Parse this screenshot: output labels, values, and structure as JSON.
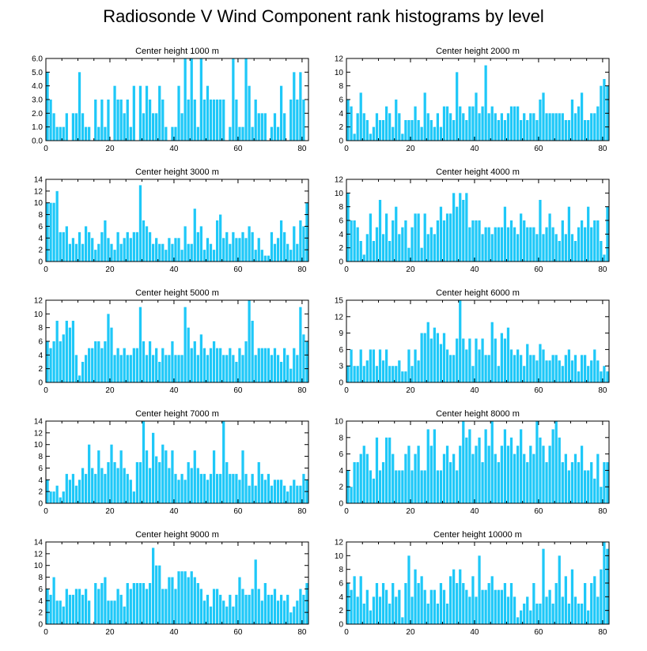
{
  "title": "Radiosonde V Wind Component rank histograms by level",
  "colors": {
    "bar": "#1ec8f8",
    "axis": "#000000",
    "text": "#000000"
  },
  "chart_data": [
    {
      "type": "bar",
      "title": "Center height 1000 m",
      "xlim": [
        0,
        82
      ],
      "ylim": [
        0,
        6
      ],
      "yticks": [
        0,
        1,
        2,
        3,
        4,
        5,
        6
      ],
      "ytick_labels": [
        "0.0",
        "1.0",
        "2.0",
        "3.0",
        "4.0",
        "5.0",
        "6.0"
      ],
      "xticks": [
        0,
        20,
        40,
        60,
        80
      ],
      "xlabel": "",
      "ylabel": "",
      "values": [
        5,
        3,
        2,
        1,
        1,
        1,
        2,
        0,
        2,
        2,
        5,
        2,
        1,
        1,
        0,
        3,
        1,
        3,
        1,
        3,
        0,
        4,
        3,
        3,
        2,
        3,
        1,
        4,
        0,
        4,
        2,
        4,
        3,
        2,
        2,
        4,
        3,
        1,
        0,
        1,
        1,
        4,
        2,
        6,
        3,
        6,
        3,
        1,
        6,
        3,
        4,
        3,
        3,
        3,
        3,
        3,
        0,
        1,
        6,
        3,
        1,
        1,
        6,
        4,
        1,
        3,
        2,
        2,
        2,
        0,
        1,
        2,
        1,
        4,
        2,
        0,
        3,
        5,
        3,
        5,
        3,
        0
      ]
    },
    {
      "type": "bar",
      "title": "Center height 2000 m",
      "xlim": [
        0,
        82
      ],
      "ylim": [
        0,
        12
      ],
      "yticks": [
        0,
        2,
        4,
        6,
        8,
        10,
        12
      ],
      "ytick_labels": [
        "0",
        "2",
        "4",
        "6",
        "8",
        "10",
        "12"
      ],
      "xticks": [
        0,
        20,
        40,
        60,
        80
      ],
      "xlabel": "",
      "ylabel": "",
      "values": [
        6,
        5,
        1,
        4,
        7,
        4,
        3,
        1,
        2,
        4,
        3,
        3,
        5,
        4,
        2,
        6,
        4,
        1,
        3,
        3,
        3,
        5,
        3,
        2,
        7,
        4,
        3,
        2,
        4,
        2,
        5,
        5,
        4,
        3,
        10,
        5,
        4,
        3,
        5,
        5,
        7,
        4,
        5,
        11,
        4,
        5,
        4,
        3,
        4,
        3,
        4,
        5,
        5,
        5,
        3,
        4,
        3,
        4,
        4,
        3,
        6,
        7,
        4,
        4,
        4,
        4,
        4,
        4,
        3,
        3,
        6,
        4,
        5,
        7,
        3,
        3,
        4,
        4,
        5,
        8,
        9,
        8
      ]
    },
    {
      "type": "bar",
      "title": "Center height 3000 m",
      "xlim": [
        0,
        82
      ],
      "ylim": [
        0,
        14
      ],
      "yticks": [
        0,
        2,
        4,
        6,
        8,
        10,
        12,
        14
      ],
      "ytick_labels": [
        "0",
        "2",
        "4",
        "6",
        "8",
        "10",
        "12",
        "14"
      ],
      "xticks": [
        0,
        20,
        40,
        60,
        80
      ],
      "xlabel": "",
      "ylabel": "",
      "values": [
        10,
        10,
        10,
        12,
        5,
        5,
        6,
        3,
        4,
        3,
        5,
        3,
        6,
        5,
        4,
        2,
        3,
        5,
        7,
        4,
        3,
        2,
        5,
        3,
        4,
        5,
        4,
        5,
        5,
        13,
        7,
        6,
        5,
        3,
        4,
        3,
        3,
        2,
        4,
        3,
        4,
        4,
        2,
        6,
        3,
        3,
        9,
        5,
        6,
        2,
        4,
        3,
        2,
        7,
        8,
        4,
        5,
        3,
        5,
        4,
        4,
        5,
        4,
        6,
        5,
        2,
        4,
        2,
        1,
        1,
        5,
        3,
        4,
        7,
        5,
        3,
        2,
        6,
        3,
        7,
        6,
        10
      ]
    },
    {
      "type": "bar",
      "title": "Center height 4000 m",
      "xlim": [
        0,
        82
      ],
      "ylim": [
        0,
        12
      ],
      "yticks": [
        0,
        2,
        4,
        6,
        8,
        10,
        12
      ],
      "ytick_labels": [
        "0",
        "2",
        "4",
        "6",
        "8",
        "10",
        "12"
      ],
      "xticks": [
        0,
        20,
        40,
        60,
        80
      ],
      "xlabel": "",
      "ylabel": "",
      "values": [
        10,
        6,
        6,
        5,
        3,
        1,
        4,
        7,
        3,
        5,
        9,
        4,
        7,
        3,
        6,
        8,
        4,
        5,
        6,
        2,
        5,
        7,
        7,
        2,
        7,
        4,
        5,
        4,
        6,
        8,
        6,
        7,
        7,
        10,
        8,
        10,
        9,
        10,
        5,
        6,
        6,
        6,
        4,
        5,
        5,
        4,
        5,
        5,
        5,
        8,
        5,
        6,
        5,
        4,
        7,
        6,
        5,
        5,
        5,
        4,
        9,
        4,
        5,
        7,
        5,
        4,
        3,
        6,
        4,
        8,
        4,
        3,
        5,
        6,
        5,
        8,
        5,
        6,
        6,
        3,
        1,
        8
      ]
    },
    {
      "type": "bar",
      "title": "Center height 5000 m",
      "xlim": [
        0,
        82
      ],
      "ylim": [
        0,
        12
      ],
      "yticks": [
        0,
        2,
        4,
        6,
        8,
        10,
        12
      ],
      "ytick_labels": [
        "0",
        "2",
        "4",
        "6",
        "8",
        "10",
        "12"
      ],
      "xticks": [
        0,
        20,
        40,
        60,
        80
      ],
      "xlabel": "",
      "ylabel": "",
      "values": [
        6,
        5,
        6,
        9,
        6,
        7,
        9,
        8,
        9,
        4,
        1,
        3,
        4,
        5,
        5,
        6,
        6,
        5,
        6,
        10,
        8,
        4,
        5,
        4,
        5,
        4,
        4,
        5,
        5,
        11,
        6,
        4,
        6,
        4,
        5,
        3,
        5,
        4,
        4,
        6,
        4,
        4,
        4,
        11,
        8,
        5,
        6,
        4,
        7,
        5,
        4,
        5,
        6,
        5,
        5,
        4,
        4,
        5,
        4,
        3,
        5,
        4,
        6,
        12,
        9,
        4,
        5,
        5,
        5,
        5,
        4,
        5,
        4,
        3,
        5,
        4,
        2,
        5,
        4,
        11,
        7,
        6
      ]
    },
    {
      "type": "bar",
      "title": "Center height 6000 m",
      "xlim": [
        0,
        82
      ],
      "ylim": [
        0,
        15
      ],
      "yticks": [
        0,
        3,
        6,
        9,
        12,
        15
      ],
      "ytick_labels": [
        "0",
        "3",
        "6",
        "9",
        "12",
        "15"
      ],
      "xticks": [
        0,
        20,
        40,
        60,
        80
      ],
      "xlabel": "",
      "ylabel": "",
      "values": [
        3,
        6,
        3,
        3,
        6,
        3,
        4,
        6,
        6,
        3,
        6,
        4,
        6,
        3,
        3,
        3,
        4,
        2,
        2,
        6,
        3,
        6,
        4,
        9,
        9,
        11,
        8,
        10,
        9,
        7,
        9,
        6,
        5,
        5,
        8,
        15,
        8,
        6,
        8,
        3,
        8,
        6,
        8,
        5,
        5,
        11,
        8,
        3,
        9,
        8,
        10,
        6,
        5,
        6,
        5,
        3,
        7,
        5,
        5,
        4,
        7,
        6,
        4,
        4,
        5,
        5,
        4,
        3,
        5,
        6,
        4,
        5,
        2,
        5,
        5,
        3,
        4,
        6,
        4,
        2,
        3,
        2
      ]
    },
    {
      "type": "bar",
      "title": "Center height 7000 m",
      "xlim": [
        0,
        82
      ],
      "ylim": [
        0,
        14
      ],
      "yticks": [
        0,
        2,
        4,
        6,
        8,
        10,
        12,
        14
      ],
      "ytick_labels": [
        "0",
        "2",
        "4",
        "6",
        "8",
        "10",
        "12",
        "14"
      ],
      "xticks": [
        0,
        20,
        40,
        60,
        80
      ],
      "xlabel": "",
      "ylabel": "",
      "values": [
        4,
        2,
        2,
        3,
        1,
        2,
        5,
        4,
        5,
        3,
        4,
        6,
        5,
        10,
        6,
        5,
        9,
        6,
        5,
        7,
        10,
        7,
        6,
        9,
        6,
        5,
        4,
        2,
        7,
        7,
        14,
        9,
        6,
        12,
        8,
        7,
        10,
        9,
        6,
        9,
        5,
        4,
        5,
        4,
        7,
        6,
        9,
        6,
        5,
        5,
        4,
        5,
        9,
        5,
        5,
        14,
        7,
        5,
        5,
        5,
        4,
        9,
        5,
        3,
        5,
        3,
        7,
        5,
        4,
        5,
        3,
        4,
        4,
        4,
        3,
        2,
        3,
        4,
        3,
        3,
        5,
        4
      ]
    },
    {
      "type": "bar",
      "title": "Center height 8000 m",
      "xlim": [
        0,
        82
      ],
      "ylim": [
        0,
        10
      ],
      "yticks": [
        0,
        2,
        4,
        6,
        8,
        10
      ],
      "ytick_labels": [
        "0",
        "2",
        "4",
        "6",
        "8",
        "10"
      ],
      "xticks": [
        0,
        20,
        40,
        60,
        80
      ],
      "xlabel": "",
      "ylabel": "",
      "values": [
        4,
        2,
        5,
        5,
        6,
        7,
        6,
        4,
        3,
        8,
        4,
        5,
        8,
        8,
        6,
        4,
        4,
        4,
        6,
        7,
        4,
        6,
        7,
        4,
        4,
        9,
        7,
        9,
        4,
        4,
        6,
        7,
        5,
        6,
        4,
        7,
        10,
        8,
        9,
        6,
        7,
        8,
        5,
        9,
        7,
        10,
        6,
        5,
        7,
        9,
        7,
        8,
        6,
        7,
        9,
        6,
        5,
        7,
        6,
        10,
        8,
        7,
        5,
        7,
        9,
        10,
        8,
        5,
        6,
        4,
        5,
        6,
        5,
        7,
        4,
        4,
        5,
        3,
        6,
        2,
        5,
        5
      ]
    },
    {
      "type": "bar",
      "title": "Center height 9000 m",
      "xlim": [
        0,
        82
      ],
      "ylim": [
        0,
        14
      ],
      "yticks": [
        0,
        2,
        4,
        6,
        8,
        10,
        12,
        14
      ],
      "ytick_labels": [
        "0",
        "2",
        "4",
        "6",
        "8",
        "10",
        "12",
        "14"
      ],
      "xticks": [
        0,
        20,
        40,
        60,
        80
      ],
      "xlabel": "",
      "ylabel": "",
      "values": [
        6,
        5,
        8,
        4,
        4,
        3,
        6,
        5,
        5,
        6,
        6,
        5,
        6,
        4,
        0,
        7,
        6,
        7,
        8,
        4,
        4,
        4,
        6,
        5,
        3,
        7,
        6,
        7,
        7,
        7,
        7,
        6,
        7,
        13,
        10,
        10,
        6,
        6,
        8,
        8,
        6,
        9,
        9,
        9,
        8,
        9,
        8,
        7,
        6,
        4,
        5,
        3,
        6,
        6,
        5,
        4,
        3,
        5,
        3,
        5,
        8,
        6,
        5,
        5,
        6,
        11,
        6,
        4,
        7,
        5,
        5,
        6,
        4,
        5,
        4,
        5,
        2,
        3,
        4,
        6,
        5,
        7
      ]
    },
    {
      "type": "bar",
      "title": "Center height 10000 m",
      "xlim": [
        0,
        82
      ],
      "ylim": [
        0,
        12
      ],
      "yticks": [
        0,
        2,
        4,
        6,
        8,
        10,
        12
      ],
      "ytick_labels": [
        "0",
        "2",
        "4",
        "6",
        "8",
        "10",
        "12"
      ],
      "xticks": [
        0,
        20,
        40,
        60,
        80
      ],
      "xlabel": "",
      "ylabel": "",
      "values": [
        6,
        5,
        7,
        4,
        7,
        3,
        5,
        2,
        4,
        6,
        4,
        6,
        5,
        3,
        6,
        4,
        5,
        1,
        6,
        10,
        4,
        8,
        6,
        7,
        5,
        3,
        5,
        5,
        3,
        6,
        5,
        3,
        7,
        8,
        6,
        8,
        6,
        5,
        4,
        7,
        4,
        10,
        5,
        5,
        6,
        7,
        5,
        5,
        5,
        6,
        4,
        6,
        4,
        1,
        2,
        3,
        4,
        2,
        6,
        3,
        3,
        11,
        4,
        5,
        3,
        6,
        10,
        4,
        7,
        3,
        8,
        4,
        3,
        3,
        6,
        2,
        6,
        7,
        4,
        8,
        12,
        11
      ]
    }
  ]
}
